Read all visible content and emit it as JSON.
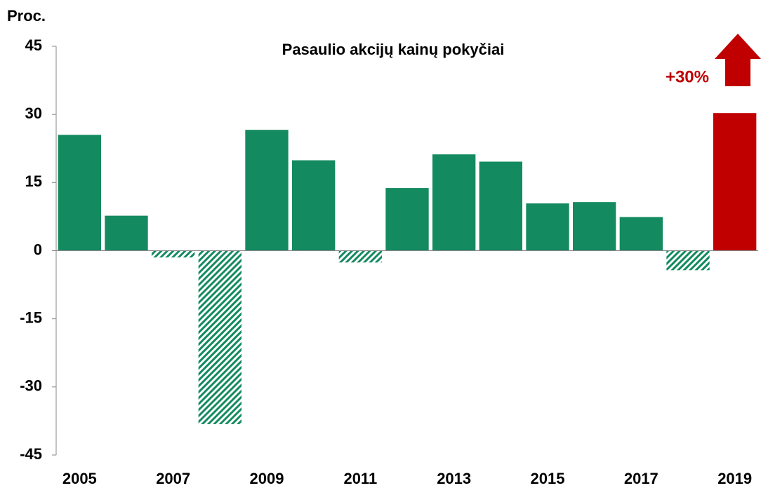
{
  "chart_data": {
    "type": "bar",
    "title": "Pasaulio akcijų kainų pokyčiai",
    "y_label": "Proc.",
    "annotation": "+30%",
    "categories": [
      "2005",
      null,
      "2007",
      null,
      "2009",
      null,
      "2011",
      null,
      "2013",
      null,
      "2015",
      null,
      "2017",
      null,
      "2019"
    ],
    "values": [
      25.5,
      7.7,
      -1.5,
      -38.2,
      26.6,
      19.9,
      -2.6,
      13.8,
      21.2,
      19.6,
      10.4,
      10.7,
      7.4,
      -4.3,
      30.3
    ],
    "colors": [
      "#138a60",
      "#138a60",
      "#138a60",
      "#138a60",
      "#138a60",
      "#138a60",
      "#138a60",
      "#138a60",
      "#138a60",
      "#138a60",
      "#138a60",
      "#138a60",
      "#138a60",
      "#138a60",
      "#c00000"
    ],
    "ylim": [
      -45,
      45
    ],
    "yticks": [
      -45,
      -30,
      -15,
      0,
      15,
      30,
      45
    ],
    "grid": false
  }
}
